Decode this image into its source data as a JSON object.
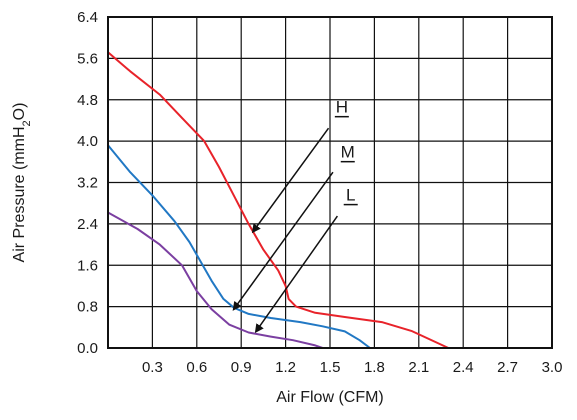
{
  "chart_data": {
    "type": "line",
    "xlabel": "Air Flow (CFM)",
    "ylabel": "Air Pressure (mmH",
    "ylabel_subscript": "2",
    "ylabel_suffix": "O)",
    "xlim": [
      0,
      3.0
    ],
    "ylim": [
      0,
      6.4
    ],
    "grid": true,
    "x_ticks": [
      "0.3",
      "0.6",
      "0.9",
      "1.2",
      "1.5",
      "1.8",
      "2.1",
      "2.4",
      "2.7",
      "3.0"
    ],
    "y_ticks": [
      "0.0",
      "0.8",
      "1.6",
      "2.4",
      "3.2",
      "4.0",
      "4.8",
      "5.6",
      "6.4"
    ],
    "series": [
      {
        "name": "H",
        "color": "#e8232a",
        "points": [
          [
            0.0,
            5.72
          ],
          [
            0.15,
            5.35
          ],
          [
            0.35,
            4.9
          ],
          [
            0.5,
            4.45
          ],
          [
            0.65,
            4.0
          ],
          [
            0.75,
            3.5
          ],
          [
            0.85,
            2.95
          ],
          [
            0.95,
            2.4
          ],
          [
            1.05,
            1.9
          ],
          [
            1.15,
            1.5
          ],
          [
            1.2,
            1.2
          ],
          [
            1.22,
            0.95
          ],
          [
            1.27,
            0.8
          ],
          [
            1.4,
            0.68
          ],
          [
            1.6,
            0.6
          ],
          [
            1.85,
            0.5
          ],
          [
            2.05,
            0.33
          ],
          [
            2.3,
            0.0
          ]
        ]
      },
      {
        "name": "M",
        "color": "#2178c4",
        "points": [
          [
            0.0,
            3.92
          ],
          [
            0.15,
            3.4
          ],
          [
            0.3,
            2.95
          ],
          [
            0.45,
            2.45
          ],
          [
            0.55,
            2.05
          ],
          [
            0.62,
            1.7
          ],
          [
            0.7,
            1.3
          ],
          [
            0.78,
            0.95
          ],
          [
            0.85,
            0.78
          ],
          [
            0.95,
            0.66
          ],
          [
            1.1,
            0.58
          ],
          [
            1.3,
            0.5
          ],
          [
            1.45,
            0.42
          ],
          [
            1.6,
            0.32
          ],
          [
            1.7,
            0.15
          ],
          [
            1.77,
            0.0
          ]
        ]
      },
      {
        "name": "L",
        "color": "#7b3fa1",
        "points": [
          [
            0.0,
            2.62
          ],
          [
            0.2,
            2.3
          ],
          [
            0.35,
            2.0
          ],
          [
            0.5,
            1.6
          ],
          [
            0.6,
            1.1
          ],
          [
            0.7,
            0.75
          ],
          [
            0.82,
            0.45
          ],
          [
            0.95,
            0.3
          ],
          [
            1.1,
            0.22
          ],
          [
            1.25,
            0.15
          ],
          [
            1.4,
            0.05
          ],
          [
            1.45,
            0.0
          ]
        ]
      }
    ],
    "annotations": [
      {
        "label": "H",
        "label_at": [
          1.58,
          4.55
        ],
        "arrow_from": [
          1.49,
          4.25
        ],
        "arrow_to": [
          0.98,
          2.25
        ]
      },
      {
        "label": "M",
        "label_at": [
          1.62,
          3.68
        ],
        "arrow_from": [
          1.52,
          3.4
        ],
        "arrow_to": [
          0.85,
          0.75
        ]
      },
      {
        "label": "L",
        "label_at": [
          1.64,
          2.85
        ],
        "arrow_from": [
          1.55,
          2.55
        ],
        "arrow_to": [
          1.0,
          0.32
        ]
      }
    ]
  }
}
